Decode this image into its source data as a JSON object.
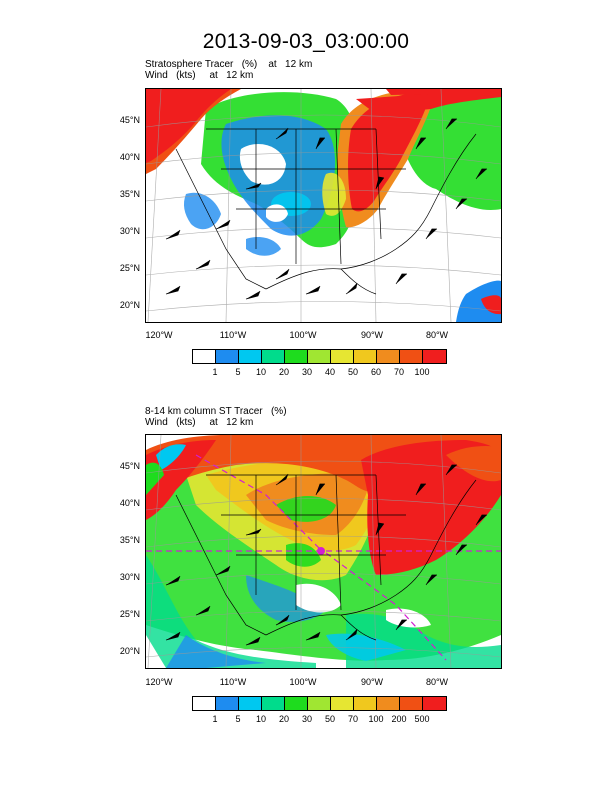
{
  "title": "2013-09-03_03:00:00",
  "panels": [
    {
      "line1": "Stratosphere Tracer   (%)    at   12 km",
      "line2": "Wind   (kts)     at   12 km",
      "colorbar_labels": [
        "1",
        "5",
        "10",
        "20",
        "30",
        "40",
        "50",
        "60",
        "70",
        "100"
      ],
      "colorbar_colors": [
        "#ffffff",
        "#1e8cf0",
        "#00c8f0",
        "#00dc8c",
        "#1edc1e",
        "#a0e632",
        "#e6e632",
        "#f0c81e",
        "#f08c1e",
        "#f05014",
        "#f01e1e"
      ]
    },
    {
      "line1": "8-14 km column ST Tracer   (%)",
      "line2": "Wind   (kts)     at   12 km",
      "colorbar_labels": [
        "1",
        "5",
        "10",
        "20",
        "30",
        "50",
        "70",
        "100",
        "200",
        "500"
      ],
      "colorbar_colors": [
        "#ffffff",
        "#1e8cf0",
        "#00c8f0",
        "#00dc8c",
        "#1edc1e",
        "#a0e632",
        "#e6e632",
        "#f0c81e",
        "#f08c1e",
        "#f05014",
        "#f01e1e"
      ]
    }
  ],
  "lat_labels": [
    "45°N",
    "40°N",
    "35°N",
    "30°N",
    "25°N",
    "20°N"
  ],
  "lon_labels": [
    "120°W",
    "110°W",
    "100°W",
    "90°W",
    "80°W"
  ]
}
